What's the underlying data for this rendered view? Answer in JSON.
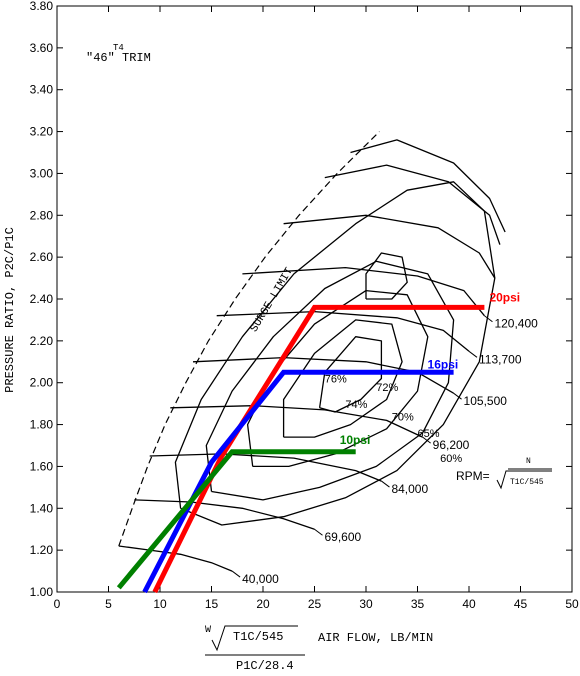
{
  "chart_data": {
    "type": "line",
    "title": "\"46\" TRIM",
    "title_prefix": "T4",
    "xlabel": "AIR FLOW, LB/MIN",
    "ylabel": "PRESSURE RATIO, P2C/P1C",
    "x_formula": {
      "numerator_w": "W",
      "numerator_root": "T1C/545",
      "denominator": "P1C/28.4"
    },
    "rpm_formula": {
      "prefix": "RPM=",
      "numerator": "N",
      "denominator": "T1C/545"
    },
    "xlim": [
      0,
      50
    ],
    "ylim": [
      1.0,
      3.8
    ],
    "x_ticks": [
      "0",
      "5",
      "10",
      "15",
      "20",
      "25",
      "30",
      "35",
      "40",
      "45",
      "50"
    ],
    "y_ticks": [
      "1.00",
      "1.20",
      "1.40",
      "1.60",
      "1.80",
      "2.00",
      "2.20",
      "2.40",
      "2.60",
      "2.80",
      "3.00",
      "3.20",
      "3.40",
      "3.60",
      "3.80"
    ],
    "grid": false,
    "surge_limit": {
      "label": "SURGE LIMIT",
      "points": [
        [
          6,
          1.22
        ],
        [
          7.3,
          1.4
        ],
        [
          8.8,
          1.6
        ],
        [
          10.5,
          1.8
        ],
        [
          12.5,
          2.0
        ],
        [
          14.7,
          2.2
        ],
        [
          17.3,
          2.4
        ],
        [
          20.2,
          2.6
        ],
        [
          23.5,
          2.8
        ],
        [
          27.2,
          3.0
        ],
        [
          31.3,
          3.2
        ]
      ]
    },
    "speed_lines": [
      {
        "label": "40,000",
        "points": [
          [
            6,
            1.22
          ],
          [
            9,
            1.2
          ],
          [
            12,
            1.18
          ],
          [
            15,
            1.14
          ],
          [
            17,
            1.1
          ]
        ]
      },
      {
        "label": "69,600",
        "points": [
          [
            7.5,
            1.44
          ],
          [
            13,
            1.43
          ],
          [
            18,
            1.4
          ],
          [
            22,
            1.35
          ],
          [
            25,
            1.3
          ]
        ]
      },
      {
        "label": "84,000",
        "points": [
          [
            9,
            1.65
          ],
          [
            16,
            1.66
          ],
          [
            23,
            1.64
          ],
          [
            29,
            1.58
          ],
          [
            31.5,
            1.53
          ]
        ]
      },
      {
        "label": "96,200",
        "points": [
          [
            11,
            1.88
          ],
          [
            19,
            1.89
          ],
          [
            26,
            1.87
          ],
          [
            32,
            1.82
          ],
          [
            35.5,
            1.74
          ]
        ]
      },
      {
        "label": "105,500",
        "points": [
          [
            13.2,
            2.1
          ],
          [
            22,
            2.12
          ],
          [
            30,
            2.1
          ],
          [
            35,
            2.05
          ],
          [
            38.5,
            1.95
          ]
        ]
      },
      {
        "label": "113,700",
        "points": [
          [
            15.5,
            2.32
          ],
          [
            25,
            2.34
          ],
          [
            33,
            2.31
          ],
          [
            37.5,
            2.25
          ],
          [
            40,
            2.15
          ]
        ]
      },
      {
        "label": "120,400",
        "points": [
          [
            18,
            2.52
          ],
          [
            28,
            2.55
          ],
          [
            35,
            2.51
          ],
          [
            39.5,
            2.44
          ],
          [
            41.5,
            2.32
          ]
        ]
      },
      {
        "label": "",
        "points": [
          [
            22,
            2.76
          ],
          [
            30,
            2.8
          ],
          [
            37,
            2.74
          ],
          [
            41,
            2.62
          ],
          [
            42.5,
            2.5
          ]
        ]
      },
      {
        "label": "",
        "points": [
          [
            26,
            2.98
          ],
          [
            32,
            3.04
          ],
          [
            38,
            2.96
          ],
          [
            42,
            2.8
          ],
          [
            43,
            2.66
          ]
        ]
      },
      {
        "label": "",
        "points": [
          [
            28.5,
            3.1
          ],
          [
            33,
            3.16
          ],
          [
            38.5,
            3.05
          ],
          [
            42,
            2.88
          ],
          [
            43.5,
            2.72
          ]
        ]
      }
    ],
    "efficiency_islands": [
      {
        "label": "60%",
        "points": [
          [
            12,
            1.4
          ],
          [
            11.5,
            1.62
          ],
          [
            14,
            1.92
          ],
          [
            18,
            2.22
          ],
          [
            23,
            2.52
          ],
          [
            29,
            2.76
          ],
          [
            34,
            2.92
          ],
          [
            38.5,
            2.96
          ],
          [
            41.5,
            2.82
          ],
          [
            42.5,
            2.5
          ],
          [
            41,
            2.1
          ],
          [
            37.5,
            1.8
          ],
          [
            33,
            1.58
          ],
          [
            28,
            1.45
          ],
          [
            22,
            1.36
          ],
          [
            16,
            1.32
          ],
          [
            12,
            1.4
          ]
        ]
      },
      {
        "label": "65%",
        "points": [
          [
            15,
            1.48
          ],
          [
            14.5,
            1.7
          ],
          [
            17,
            1.96
          ],
          [
            21,
            2.22
          ],
          [
            26,
            2.45
          ],
          [
            31,
            2.58
          ],
          [
            36,
            2.52
          ],
          [
            38.5,
            2.3
          ],
          [
            38,
            2.0
          ],
          [
            35.5,
            1.76
          ],
          [
            31,
            1.6
          ],
          [
            25.5,
            1.5
          ],
          [
            20,
            1.44
          ],
          [
            15,
            1.48
          ]
        ]
      },
      {
        "label": "70%",
        "points": [
          [
            19,
            1.6
          ],
          [
            18.5,
            1.8
          ],
          [
            21,
            2.05
          ],
          [
            25,
            2.28
          ],
          [
            30,
            2.44
          ],
          [
            34,
            2.42
          ],
          [
            36,
            2.22
          ],
          [
            35,
            1.96
          ],
          [
            32,
            1.78
          ],
          [
            27,
            1.66
          ],
          [
            22.5,
            1.6
          ],
          [
            19,
            1.6
          ]
        ]
      },
      {
        "label": "72%",
        "points": [
          [
            22,
            1.74
          ],
          [
            22,
            1.92
          ],
          [
            25,
            2.14
          ],
          [
            29,
            2.3
          ],
          [
            32.5,
            2.28
          ],
          [
            33.5,
            2.1
          ],
          [
            32,
            1.92
          ],
          [
            28.5,
            1.8
          ],
          [
            25,
            1.74
          ],
          [
            22,
            1.74
          ]
        ]
      },
      {
        "label": "74%",
        "points": [
          [
            25.5,
            1.88
          ],
          [
            26,
            2.05
          ],
          [
            29,
            2.22
          ],
          [
            31.5,
            2.2
          ],
          [
            31.5,
            2.02
          ],
          [
            29.5,
            1.92
          ],
          [
            27,
            1.86
          ],
          [
            25.5,
            1.88
          ]
        ]
      },
      {
        "label": "76%",
        "points": [
          [
            30,
            2.4
          ],
          [
            30,
            2.52
          ],
          [
            31.5,
            2.62
          ],
          [
            33.5,
            2.6
          ],
          [
            34,
            2.48
          ],
          [
            32.5,
            2.4
          ],
          [
            30,
            2.4
          ]
        ]
      }
    ],
    "series": [
      {
        "name": "20psi",
        "color": "#ff0000",
        "points": [
          [
            9.5,
            1.0
          ],
          [
            16,
            1.65
          ],
          [
            25,
            2.36
          ],
          [
            41.5,
            2.36
          ]
        ]
      },
      {
        "name": "16psi",
        "color": "#0000ff",
        "points": [
          [
            8.5,
            1.0
          ],
          [
            15,
            1.62
          ],
          [
            22,
            2.05
          ],
          [
            38.5,
            2.05
          ]
        ]
      },
      {
        "name": "10psi",
        "color": "#008000",
        "points": [
          [
            6,
            1.02
          ],
          [
            17,
            1.67
          ],
          [
            29,
            1.67
          ]
        ]
      }
    ]
  }
}
